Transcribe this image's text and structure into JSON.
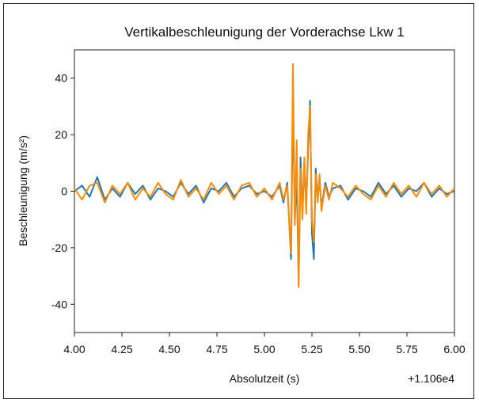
{
  "chart_data": {
    "type": "line",
    "title": "Vertikalbeschleunigung der Vorderachse Lkw 1",
    "xlabel": "Absolutzeit (s)",
    "ylabel": "Beschleunigung (m/s²)",
    "x_offset_label": "+1.106e4",
    "xlim": [
      4.0,
      6.0
    ],
    "ylim": [
      -50,
      50
    ],
    "x_ticks": [
      "4.00",
      "4.25",
      "4.50",
      "4.75",
      "5.00",
      "5.25",
      "5.50",
      "5.75",
      "6.00"
    ],
    "y_ticks": [
      "40",
      "20",
      "0",
      "-20",
      "-40"
    ],
    "grid": false,
    "series": [
      {
        "color": "#1f77b4",
        "x": [
          4.0,
          4.04,
          4.08,
          4.12,
          4.16,
          4.2,
          4.24,
          4.28,
          4.32,
          4.36,
          4.4,
          4.44,
          4.48,
          4.52,
          4.56,
          4.6,
          4.64,
          4.68,
          4.72,
          4.76,
          4.8,
          4.84,
          4.88,
          4.92,
          4.96,
          5.0,
          5.04,
          5.08,
          5.1,
          5.12,
          5.14,
          5.15,
          5.16,
          5.17,
          5.18,
          5.19,
          5.2,
          5.21,
          5.22,
          5.23,
          5.24,
          5.25,
          5.26,
          5.27,
          5.28,
          5.29,
          5.3,
          5.32,
          5.34,
          5.36,
          5.4,
          5.44,
          5.48,
          5.52,
          5.56,
          5.6,
          5.64,
          5.68,
          5.72,
          5.76,
          5.8,
          5.84,
          5.88,
          5.92,
          5.96,
          6.0
        ],
        "y": [
          0,
          2,
          -2,
          5,
          -3,
          1,
          -2,
          3,
          -1,
          2,
          -3,
          1,
          0,
          -2,
          3,
          -1,
          2,
          -4,
          1,
          0,
          3,
          -2,
          1,
          2,
          -1,
          0,
          -2,
          2,
          -4,
          3,
          -24,
          32,
          -10,
          5,
          -33,
          12,
          -8,
          10,
          -5,
          15,
          32,
          -15,
          -24,
          8,
          -3,
          5,
          -6,
          3,
          -2,
          1,
          2,
          -3,
          1,
          0,
          -2,
          3,
          -1,
          2,
          -2,
          1,
          0,
          3,
          -2,
          1,
          -1,
          0
        ]
      },
      {
        "color": "#ff8c00",
        "x": [
          4.0,
          4.04,
          4.08,
          4.12,
          4.16,
          4.2,
          4.24,
          4.28,
          4.32,
          4.36,
          4.4,
          4.44,
          4.48,
          4.52,
          4.56,
          4.6,
          4.64,
          4.68,
          4.72,
          4.76,
          4.8,
          4.84,
          4.88,
          4.92,
          4.96,
          5.0,
          5.04,
          5.08,
          5.1,
          5.12,
          5.14,
          5.15,
          5.16,
          5.17,
          5.18,
          5.19,
          5.2,
          5.21,
          5.22,
          5.23,
          5.24,
          5.25,
          5.26,
          5.27,
          5.28,
          5.29,
          5.3,
          5.32,
          5.34,
          5.36,
          5.4,
          5.44,
          5.48,
          5.52,
          5.56,
          5.6,
          5.64,
          5.68,
          5.72,
          5.76,
          5.8,
          5.84,
          5.88,
          5.92,
          5.96,
          6.0
        ],
        "y": [
          1,
          -3,
          2,
          3,
          -4,
          2,
          -1,
          3,
          -3,
          1,
          -2,
          3,
          -1,
          -3,
          4,
          -2,
          1,
          -3,
          3,
          -1,
          2,
          -3,
          2,
          3,
          -2,
          1,
          -3,
          3,
          -3,
          2,
          -22,
          45,
          -12,
          18,
          -34,
          8,
          -10,
          12,
          -8,
          20,
          30,
          -10,
          -18,
          6,
          -4,
          6,
          -7,
          2,
          -3,
          3,
          1,
          -2,
          2,
          -1,
          -3,
          2,
          -2,
          3,
          -1,
          2,
          -2,
          3,
          -1,
          2,
          -2,
          1
        ]
      }
    ]
  }
}
